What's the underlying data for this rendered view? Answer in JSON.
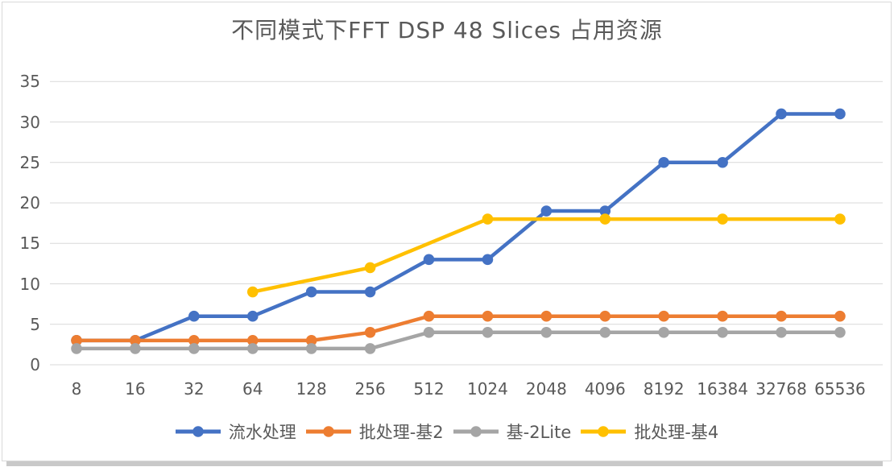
{
  "chart_data": {
    "type": "line",
    "title": "不同模式下FFT  DSP 48 Slices 占用资源",
    "categories": [
      "8",
      "16",
      "32",
      "64",
      "128",
      "256",
      "512",
      "1024",
      "2048",
      "4096",
      "8192",
      "16384",
      "32768",
      "65536"
    ],
    "series": [
      {
        "name": "流水处理",
        "color": "#4472C4",
        "values": [
          3,
          3,
          6,
          6,
          9,
          9,
          13,
          13,
          19,
          19,
          25,
          25,
          31,
          31
        ]
      },
      {
        "name": "批处理-基2",
        "color": "#ED7D31",
        "values": [
          3,
          3,
          3,
          3,
          3,
          4,
          6,
          6,
          6,
          6,
          6,
          6,
          6,
          6
        ]
      },
      {
        "name": "基-2Lite",
        "color": "#A5A5A5",
        "values": [
          2,
          2,
          2,
          2,
          2,
          2,
          4,
          4,
          4,
          4,
          4,
          4,
          4,
          4
        ]
      },
      {
        "name": "批处理-基4",
        "color": "#FFC000",
        "values": [
          null,
          null,
          null,
          9,
          null,
          12,
          null,
          18,
          null,
          18,
          null,
          18,
          null,
          18
        ]
      }
    ],
    "xlabel": "",
    "ylabel": "",
    "ylim": [
      0,
      35
    ],
    "yticks": [
      0,
      5,
      10,
      15,
      20,
      25,
      30,
      35
    ],
    "grid": "horizontal",
    "gridline_color": "#d9d9d9",
    "text_color": "#595959",
    "legend_position": "bottom"
  }
}
